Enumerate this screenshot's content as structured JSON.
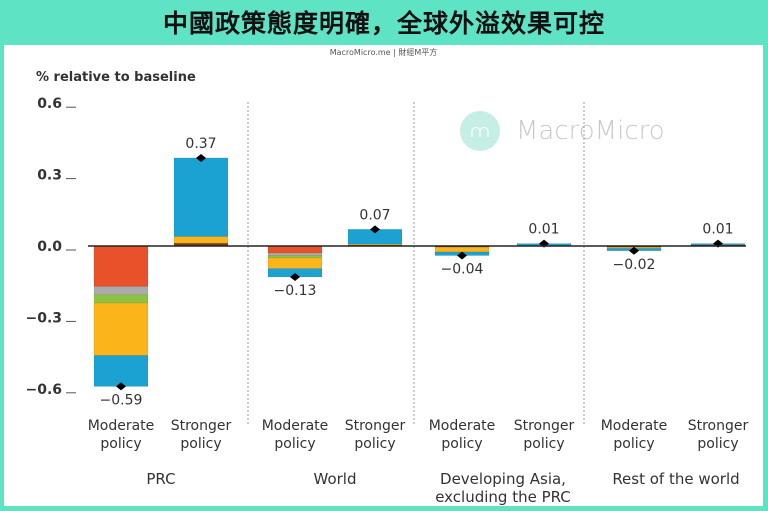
{
  "header": {
    "title": "中國政策態度明確，全球外溢效果可控",
    "source": "MacroMicro.me | 財經M平方",
    "watermark": "MacroMicro",
    "watermark_icon": "chart-line-icon"
  },
  "colors": {
    "background": "#5ee3c4",
    "red": "#e8512a",
    "gray": "#ababab",
    "green": "#8cc43f",
    "yellow": "#fbb41a",
    "blue": "#1ba1d2",
    "brown": "#7a3b1e"
  },
  "chart_data": {
    "type": "bar",
    "stacked": true,
    "ylabel": "% relative to baseline",
    "ylim": [
      -0.6,
      0.6
    ],
    "yticks": [
      "0.6",
      "0.3",
      "0.0",
      "−0.3",
      "−0.6"
    ],
    "ytick_values": [
      0.6,
      0.3,
      0.0,
      -0.3,
      -0.6
    ],
    "groups": [
      {
        "name": "PRC",
        "bars": [
          {
            "label": [
              "Moderate",
              "policy"
            ],
            "total": -0.59,
            "total_label": "−0.59",
            "segments": [
              {
                "color": "red",
                "value": -0.17
              },
              {
                "color": "gray",
                "value": -0.035
              },
              {
                "color": "green",
                "value": -0.035
              },
              {
                "color": "yellow",
                "value": -0.22
              },
              {
                "color": "blue",
                "value": -0.13
              }
            ]
          },
          {
            "label": [
              "Stronger",
              "policy"
            ],
            "total": 0.37,
            "total_label": "0.37",
            "segments": [
              {
                "color": "brown",
                "value": 0.012
              },
              {
                "color": "yellow",
                "value": 0.028
              },
              {
                "color": "blue",
                "value": 0.33
              }
            ]
          }
        ]
      },
      {
        "name": "World",
        "bars": [
          {
            "label": [
              "Moderate",
              "policy"
            ],
            "total": -0.13,
            "total_label": "−0.13",
            "segments": [
              {
                "color": "red",
                "value": -0.03
              },
              {
                "color": "gray",
                "value": -0.01
              },
              {
                "color": "green",
                "value": -0.01
              },
              {
                "color": "yellow",
                "value": -0.045
              },
              {
                "color": "blue",
                "value": -0.035
              }
            ]
          },
          {
            "label": [
              "Stronger",
              "policy"
            ],
            "total": 0.07,
            "total_label": "0.07",
            "segments": [
              {
                "color": "brown",
                "value": 0.004
              },
              {
                "color": "yellow",
                "value": 0.004
              },
              {
                "color": "blue",
                "value": 0.062
              }
            ]
          }
        ]
      },
      {
        "name": "Developing Asia,|excluding the PRC",
        "name_lines": [
          "Developing Asia,",
          "excluding the PRC"
        ],
        "bars": [
          {
            "label": [
              "Moderate",
              "policy"
            ],
            "total": -0.04,
            "total_label": "−0.04",
            "segments": [
              {
                "color": "brown",
                "value": -0.005
              },
              {
                "color": "yellow",
                "value": -0.02
              },
              {
                "color": "blue",
                "value": -0.015
              }
            ]
          },
          {
            "label": [
              "Stronger",
              "policy"
            ],
            "total": 0.01,
            "total_label": "0.01",
            "segments": [
              {
                "color": "blue",
                "value": 0.01
              }
            ]
          }
        ]
      },
      {
        "name": "Rest of the world",
        "name_lines": [
          "Rest of the world"
        ],
        "bars": [
          {
            "label": [
              "Moderate",
              "policy"
            ],
            "total": -0.02,
            "total_label": "−0.02",
            "segments": [
              {
                "color": "brown",
                "value": -0.005
              },
              {
                "color": "yellow",
                "value": -0.005
              },
              {
                "color": "blue",
                "value": -0.01
              }
            ]
          },
          {
            "label": [
              "Stronger",
              "policy"
            ],
            "total": 0.01,
            "total_label": "0.01",
            "segments": [
              {
                "color": "brown",
                "value": 0.005
              },
              {
                "color": "blue",
                "value": 0.005
              }
            ]
          }
        ]
      }
    ]
  }
}
